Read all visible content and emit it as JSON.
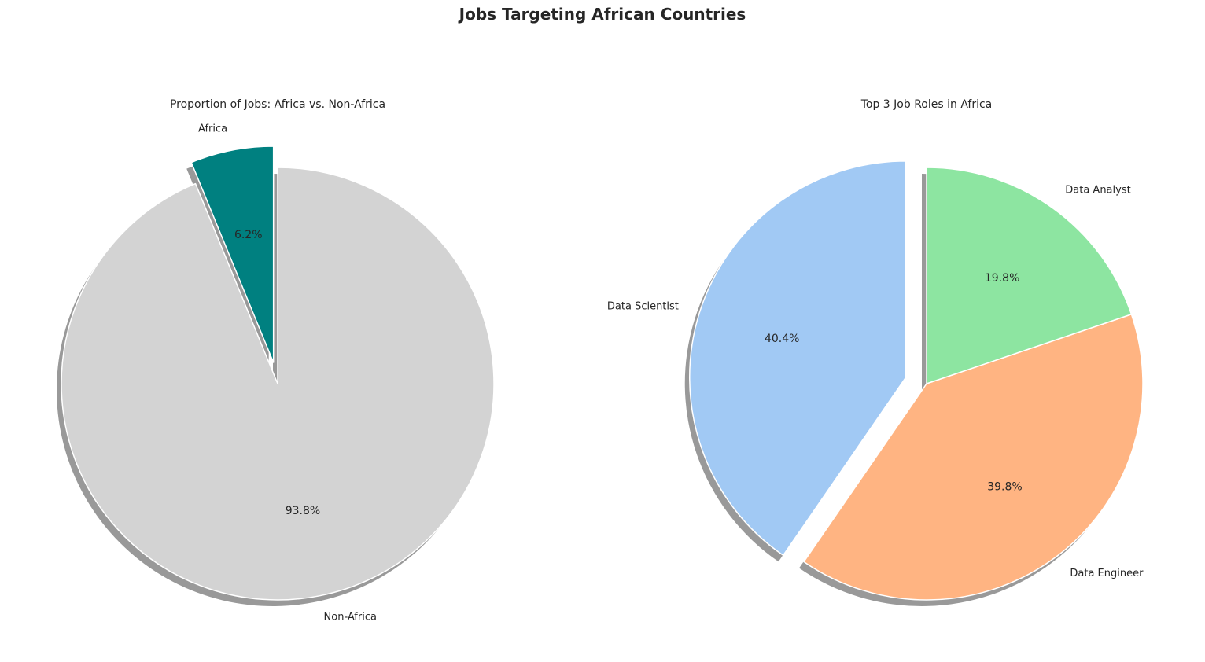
{
  "figure": {
    "title": "Jobs Targeting African Countries"
  },
  "chart_data": [
    {
      "type": "pie",
      "title": "Proportion of Jobs: Africa vs. Non-Africa",
      "labels": [
        "Africa",
        "Non-Africa"
      ],
      "values": [
        6.2,
        93.8
      ],
      "percent_labels": [
        "6.2%",
        "93.8%"
      ],
      "colors": [
        "#008080",
        "#d3d3d3"
      ],
      "explode": [
        0.1,
        0
      ],
      "start_angle_deg": 90,
      "direction": "counterclockwise",
      "shadow": true
    },
    {
      "type": "pie",
      "title": "Top 3 Job Roles in Africa",
      "labels": [
        "Data Scientist",
        "Data Engineer",
        "Data Analyst"
      ],
      "values": [
        40.4,
        39.8,
        19.8
      ],
      "percent_labels": [
        "40.4%",
        "39.8%",
        "19.8%"
      ],
      "colors": [
        "#a1c9f4",
        "#ffb482",
        "#8de5a1"
      ],
      "explode": [
        0.1,
        0,
        0
      ],
      "start_angle_deg": 90,
      "direction": "counterclockwise",
      "shadow": true
    }
  ]
}
